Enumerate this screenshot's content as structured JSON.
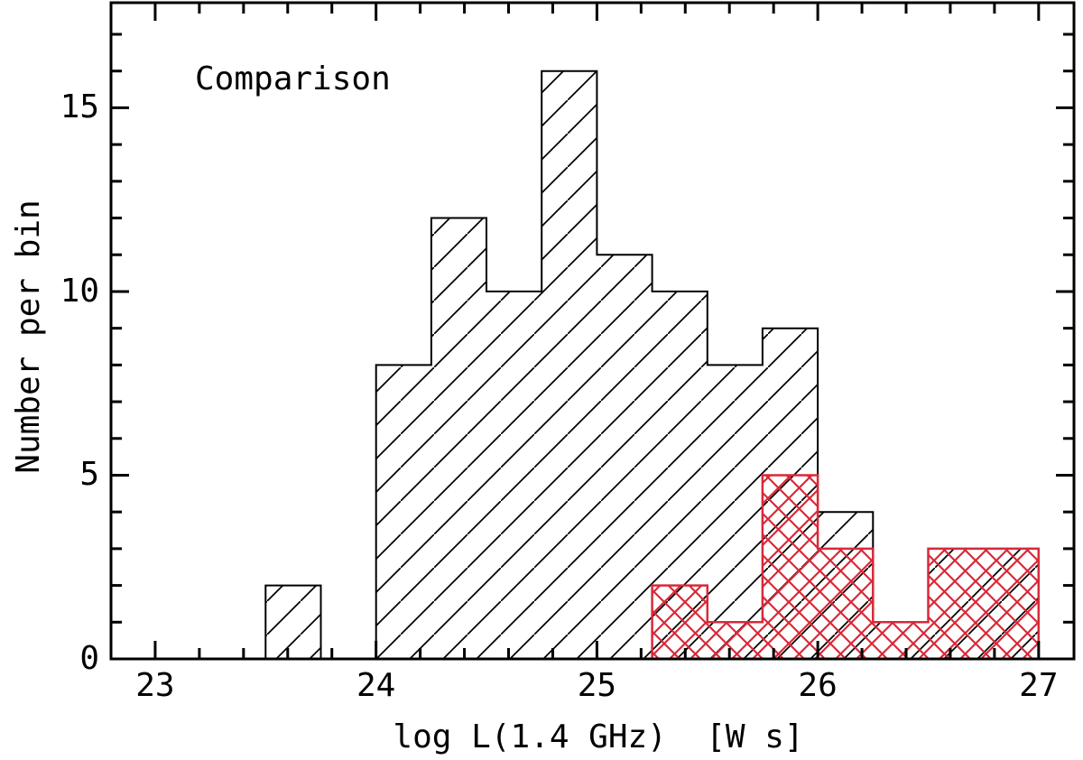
{
  "chart_data": {
    "type": "bar",
    "subtype": "step-histogram",
    "annotation": "Comparison",
    "xlabel": "log L(1.4 GHz)  [W s]",
    "ylabel": "Number per bin",
    "grid": false,
    "frame": "full-box-with-inward-ticks",
    "x_axis": {
      "min": 22.8,
      "max": 27.16,
      "major_ticks": [
        23,
        24,
        25,
        26,
        27
      ],
      "major_tick_labels": [
        "23",
        "24",
        "25",
        "26",
        "27"
      ],
      "minor_tick_step": 0.2
    },
    "y_axis": {
      "min": 0,
      "max": 17.86,
      "major_ticks": [
        0,
        5,
        10,
        15
      ],
      "major_tick_labels": [
        "0",
        "5",
        "10",
        "15"
      ],
      "minor_tick_step": 1
    },
    "bin_width": 0.25,
    "series": [
      {
        "name": "comparison-sample-black",
        "outline_color": "#000000",
        "hatch_style": "diagonal-up",
        "bins_start": 23.5,
        "counts": [
          2,
          0,
          8,
          12,
          10,
          16,
          11,
          10,
          8,
          9,
          4,
          1,
          3,
          3
        ]
      },
      {
        "name": "overlay-sample-red",
        "outline_color": "#d92938",
        "hatch_style": "cross",
        "bins_start": 25.25,
        "counts": [
          2,
          1,
          5,
          3,
          1,
          3,
          3
        ]
      }
    ]
  }
}
